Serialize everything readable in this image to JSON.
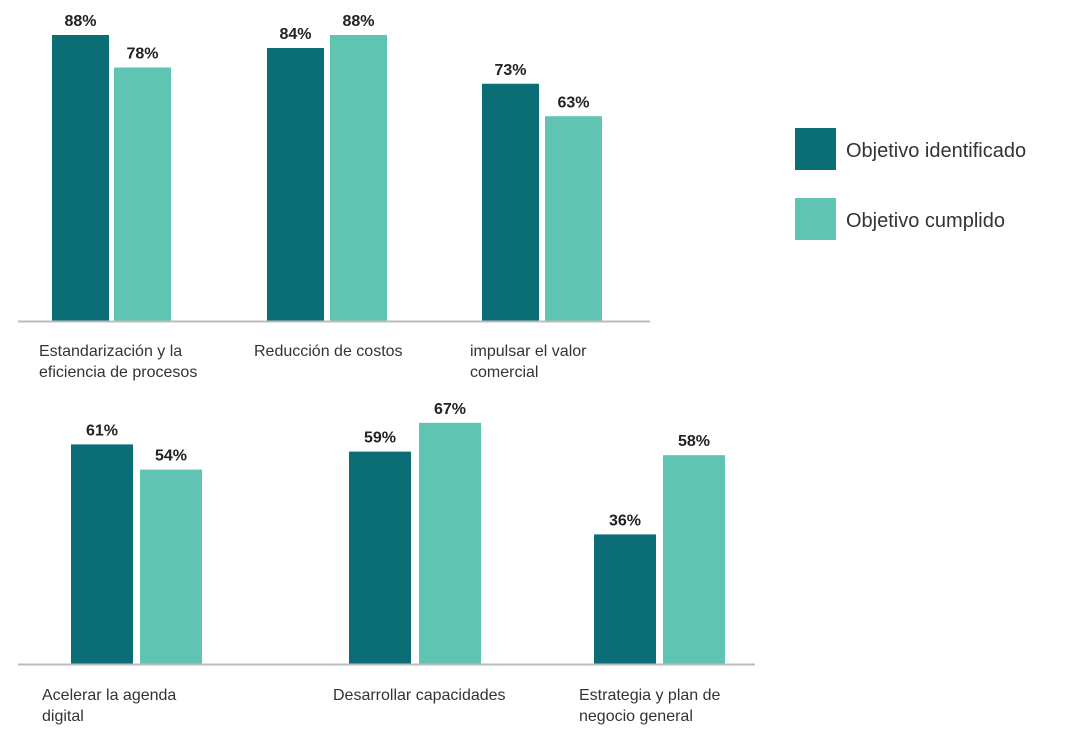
{
  "colors": {
    "identified": "#0b6e77",
    "fulfilled": "#5fc4b2",
    "axis": "#bbbbbb"
  },
  "legend": {
    "identified_label": "Objetivo identificado",
    "fulfilled_label": "Objetivo cumplido",
    "placement": "right"
  },
  "chart_data": [
    {
      "type": "bar",
      "categories": [
        [
          "Estandarización y la",
          "eficiencia de procesos"
        ],
        [
          "Reducción de costos"
        ],
        [
          "impulsar el valor",
          "comercial"
        ]
      ],
      "series": [
        {
          "name": "Objetivo identificado",
          "values": [
            88,
            84,
            73
          ],
          "labels": [
            "88%",
            "84%",
            "73%"
          ]
        },
        {
          "name": "Objetivo cumplido",
          "values": [
            78,
            88,
            63
          ],
          "labels": [
            "78%",
            "88%",
            "63%"
          ]
        }
      ],
      "title": "",
      "xlabel": "",
      "ylabel": "",
      "ylim": [
        0,
        100
      ],
      "grid": false
    },
    {
      "type": "bar",
      "categories": [
        [
          "Acelerar la agenda",
          "digital"
        ],
        [
          "Desarrollar capacidades"
        ],
        [
          "Estrategia y plan de",
          "negocio general"
        ]
      ],
      "series": [
        {
          "name": "Objetivo identificado",
          "values": [
            61,
            59,
            36
          ],
          "labels": [
            "61%",
            "59%",
            "36%"
          ]
        },
        {
          "name": "Objetivo cumplido",
          "values": [
            54,
            67,
            58
          ],
          "labels": [
            "54%",
            "67%",
            "58%"
          ]
        }
      ],
      "title": "",
      "xlabel": "",
      "ylabel": "",
      "ylim": [
        0,
        100
      ],
      "grid": false
    }
  ]
}
